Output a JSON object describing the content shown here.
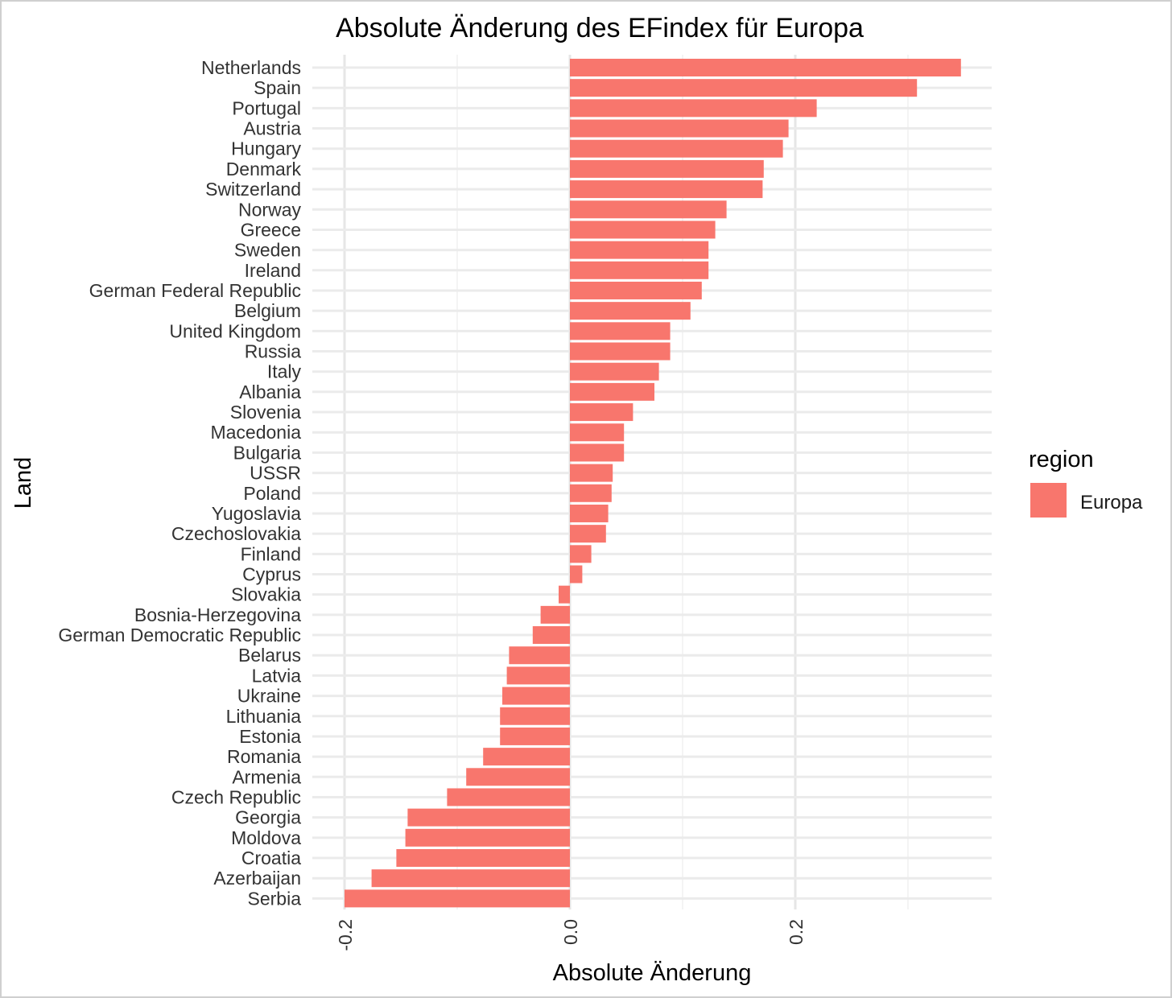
{
  "chart_data": {
    "type": "bar",
    "orientation": "horizontal",
    "title": "Absolute Änderung des EFindex für Europa",
    "xlabel": "Absolute Änderung",
    "ylabel": "Land",
    "xlim": [
      -0.2,
      0.374
    ],
    "x_ticks": [
      -0.2,
      0.0,
      0.2
    ],
    "x_tick_labels": [
      "-0.2",
      "0.0",
      "0.2"
    ],
    "grid": true,
    "legend": {
      "title": "region",
      "position": "right",
      "entries": [
        {
          "label": "Europa",
          "color": "#F8766D"
        }
      ]
    },
    "bar_color": "#F8766D",
    "categories": [
      "Netherlands",
      "Spain",
      "Portugal",
      "Austria",
      "Hungary",
      "Denmark",
      "Switzerland",
      "Norway",
      "Greece",
      "Sweden",
      "Ireland",
      "German Federal Republic",
      "Belgium",
      "United Kingdom",
      "Russia",
      "Italy",
      "Albania",
      "Slovenia",
      "Macedonia",
      "Bulgaria",
      "USSR",
      "Poland",
      "Yugoslavia",
      "Czechoslovakia",
      "Finland",
      "Cyprus",
      "Slovakia",
      "Bosnia-Herzegovina",
      "German Democratic Republic",
      "Belarus",
      "Latvia",
      "Ukraine",
      "Lithuania",
      "Estonia",
      "Romania",
      "Armenia",
      "Czech Republic",
      "Georgia",
      "Moldova",
      "Croatia",
      "Azerbaijan",
      "Serbia"
    ],
    "series": [
      {
        "values": [
          0.347,
          0.308,
          0.219,
          0.194,
          0.189,
          0.172,
          0.171,
          0.139,
          0.129,
          0.123,
          0.123,
          0.117,
          0.107,
          0.089,
          0.089,
          0.079,
          0.075,
          0.056,
          0.048,
          0.048,
          0.038,
          0.037,
          0.034,
          0.032,
          0.019,
          0.011,
          -0.01,
          -0.026,
          -0.033,
          -0.054,
          -0.056,
          -0.06,
          -0.062,
          -0.062,
          -0.077,
          -0.092,
          -0.109,
          -0.144,
          -0.146,
          -0.154,
          -0.176,
          -0.2
        ]
      }
    ]
  }
}
